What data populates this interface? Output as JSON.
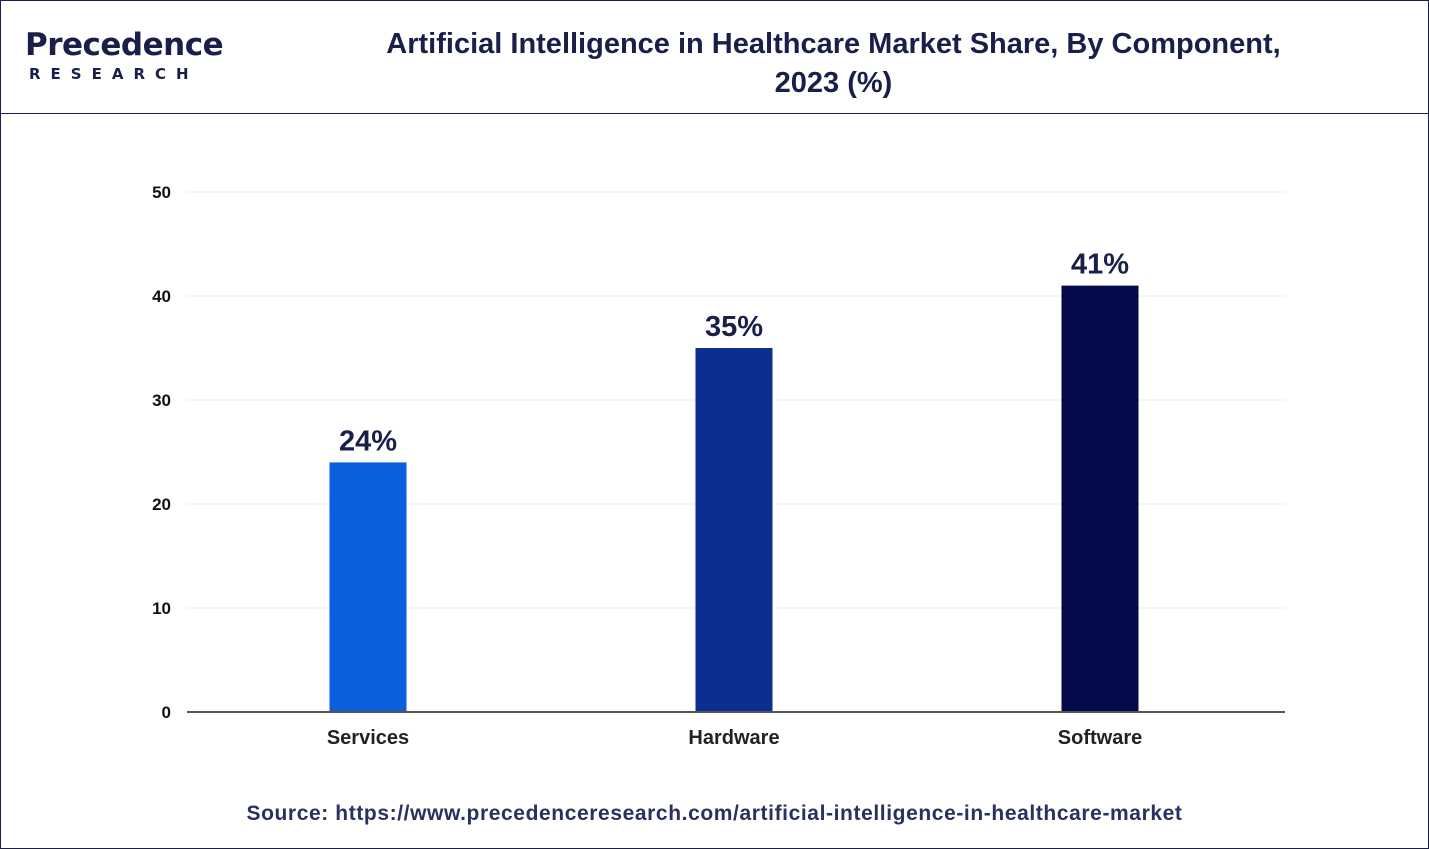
{
  "brand": {
    "name": "Precedence",
    "sub": "RESEARCH",
    "logo_color": "#1a1f4a",
    "accent_color": "#1e5bd8"
  },
  "header": {
    "title_line1": "Artificial Intelligence in Healthcare Market Share, By Component,",
    "title_line2": "2023 (%)"
  },
  "chart_data": {
    "type": "bar",
    "title": "Artificial Intelligence in Healthcare Market Share, By Component, 2023 (%)",
    "categories": [
      "Services",
      "Hardware",
      "Software"
    ],
    "values": [
      24,
      35,
      41
    ],
    "value_labels": [
      "24%",
      "35%",
      "41%"
    ],
    "bar_colors": [
      "#0a5fdc",
      "#0a2f91",
      "#050a4a"
    ],
    "xlabel": "",
    "ylabel": "",
    "ylim": [
      0,
      50
    ],
    "yticks": [
      "0",
      "10",
      "20",
      "30",
      "40",
      "50"
    ],
    "grid": true,
    "legend": "none"
  },
  "footer": {
    "source_label": "Source:",
    "source_url": "https://www.precedenceresearch.com/artificial-intelligence-in-healthcare-market"
  }
}
